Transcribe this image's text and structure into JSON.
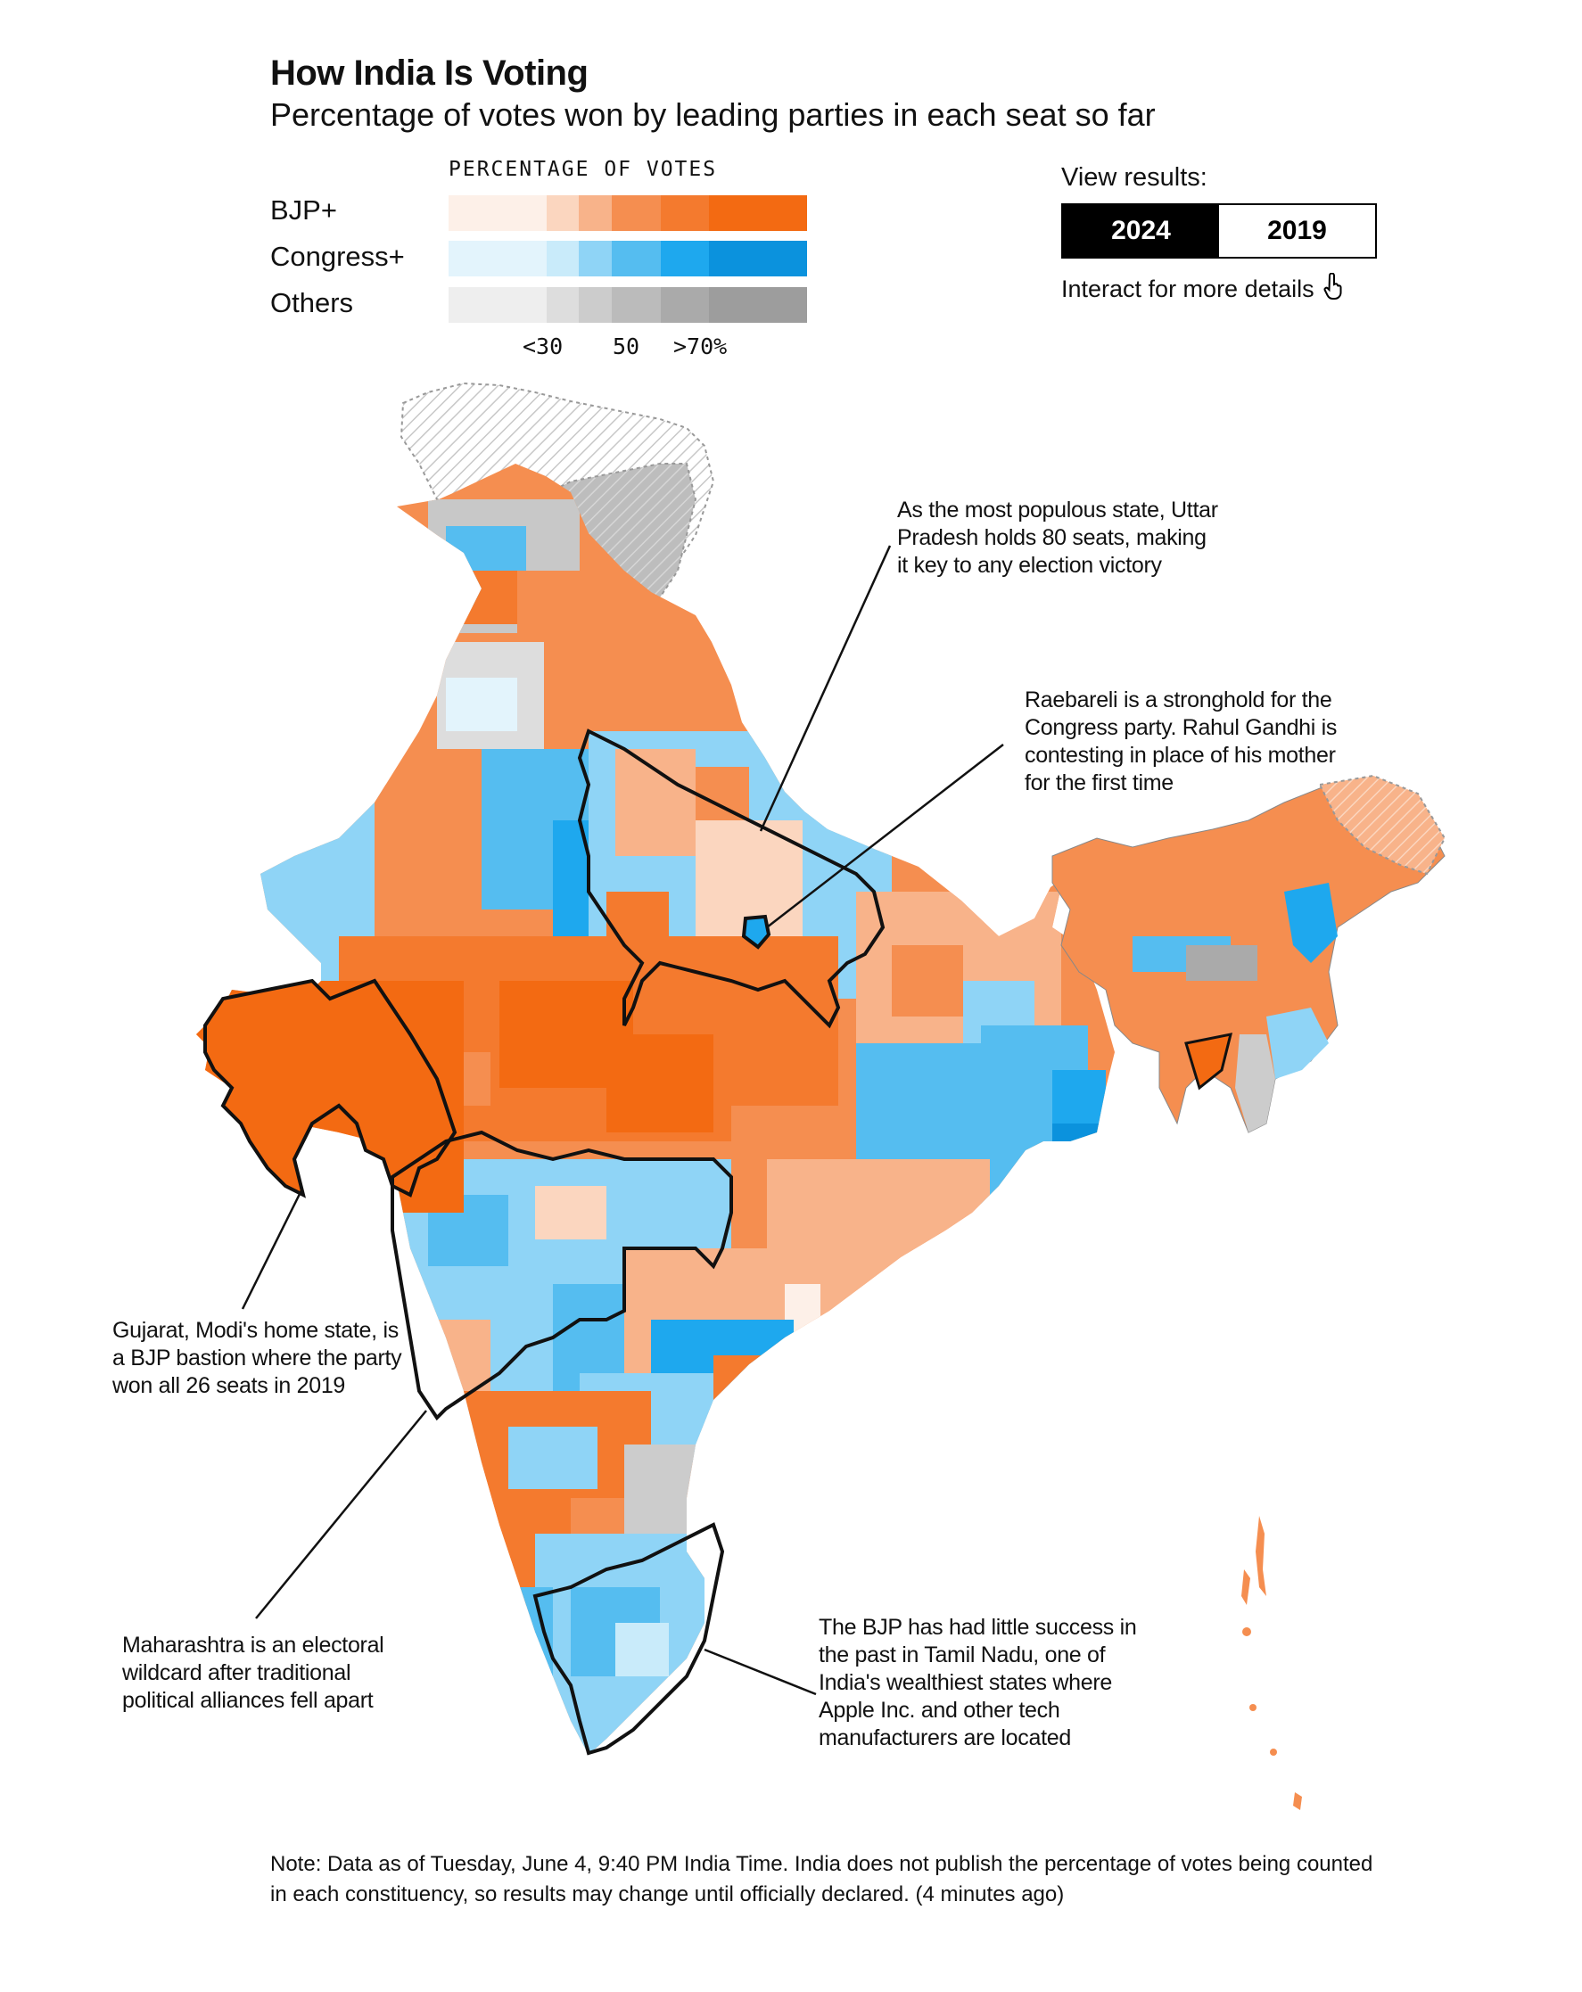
{
  "header": {
    "title": "How India Is Voting",
    "subtitle": "Percentage of votes won by leading parties in each seat so far"
  },
  "legend": {
    "heading": "PERCENTAGE OF VOTES",
    "rows": [
      {
        "label": "BJP+",
        "colors": [
          "#fdf0e8",
          "#fbd6bf",
          "#f8b38a",
          "#f58e50",
          "#f47a2e",
          "#f36a12"
        ]
      },
      {
        "label": "Congress+",
        "colors": [
          "#e3f4fc",
          "#c9ebfa",
          "#8fd4f6",
          "#55bdf0",
          "#1ea8ee",
          "#0b92dd"
        ]
      },
      {
        "label": "Others",
        "colors": [
          "#eeeeee",
          "#dddddd",
          "#cccccc",
          "#bbbbbb",
          "#aaaaaa",
          "#9d9d9d"
        ]
      }
    ],
    "ticks": [
      "<30",
      "50",
      ">70%"
    ]
  },
  "controls": {
    "view_label": "View results:",
    "years": [
      "2024",
      "2019"
    ],
    "active_year": "2024",
    "interact_text": "Interact for more details",
    "pointer_icon": "hand-pointer-icon"
  },
  "annotations": {
    "up": "As the most populous state, Uttar Pradesh holds 80 seats, making it key to any election victory",
    "raebareli": "Raebareli is a stronghold for the Congress party. Rahul Gandhi is contesting in place of his mother for the first time",
    "gujarat": "Gujarat, Modi's home state, is a BJP bastion where the party won all 26 seats in 2019",
    "maharashtra": "Maharashtra is an electoral wildcard after traditional political alliances fell apart",
    "tamilnadu": "The BJP has had little success in the past in Tamil Nadu, one of India's wealthiest states where Apple Inc. and other tech manufacturers are located"
  },
  "note": "Note: Data as of Tuesday, June 4, 9:40 PM India Time. India does not publish the percentage of votes being counted in each constituency, so results may change until officially declared. (4 minutes ago)",
  "map_colors": {
    "bjp_dark": "#f36a12",
    "bjp_mid": "#f58e50",
    "bjp_light": "#f8b38a",
    "cong_dark": "#1ea8ee",
    "cong_mid": "#55bdf0",
    "cong_light": "#8fd4f6",
    "others": "#c8c8c8",
    "disputed": "#e6e6e6"
  }
}
